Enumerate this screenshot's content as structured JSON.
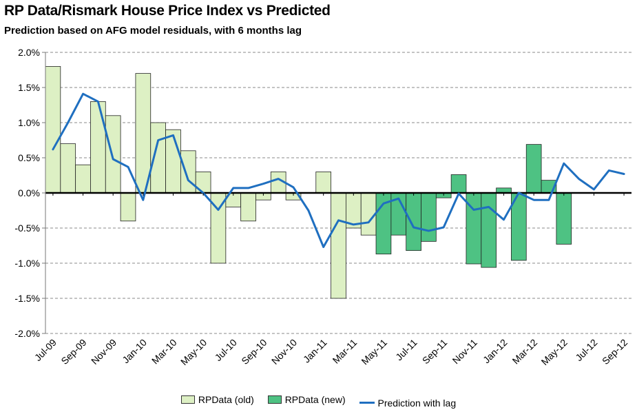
{
  "chart_data": {
    "type": "bar",
    "title": "RP Data/Rismark House Price Index vs Predicted",
    "subtitle": "Prediction based on AFG model residuals, with 6 months lag",
    "categories": [
      "Jul-09",
      "Aug-09",
      "Sep-09",
      "Oct-09",
      "Nov-09",
      "Dec-09",
      "Jan-10",
      "Feb-10",
      "Mar-10",
      "Apr-10",
      "May-10",
      "Jun-10",
      "Jul-10",
      "Aug-10",
      "Sep-10",
      "Oct-10",
      "Nov-10",
      "Dec-10",
      "Jan-11",
      "Feb-11",
      "Mar-11",
      "Apr-11",
      "May-11",
      "Jun-11",
      "Jul-11",
      "Aug-11",
      "Sep-11",
      "Oct-11",
      "Nov-11",
      "Dec-11",
      "Jan-12",
      "Feb-12",
      "Mar-12",
      "Apr-12",
      "May-12",
      "Jun-12",
      "Jul-12",
      "Aug-12",
      "Sep-12"
    ],
    "tick_labels": [
      "Jul-09",
      "Sep-09",
      "Nov-09",
      "Jan-10",
      "Mar-10",
      "May-10",
      "Jul-10",
      "Sep-10",
      "Nov-10",
      "Jan-11",
      "Mar-11",
      "May-11",
      "Jul-11",
      "Sep-11",
      "Nov-11",
      "Jan-12",
      "Mar-12",
      "May-12",
      "Jul-12",
      "Sep-12"
    ],
    "y_ticks": [
      2.0,
      1.5,
      1.0,
      0.5,
      0.0,
      -0.5,
      -1.0,
      -1.5,
      -2.0
    ],
    "y_tick_labels": [
      "2.0%",
      "1.5%",
      "1.0%",
      "0.5%",
      "0.0%",
      "-0.5%",
      "-1.0%",
      "-1.5%",
      "-2.0%"
    ],
    "ylim": [
      -2.0,
      2.0
    ],
    "series": [
      {
        "name": "RPData (old)",
        "kind": "bar",
        "color": "#ddf0c4",
        "values": [
          1.8,
          0.7,
          0.4,
          1.3,
          1.1,
          -0.4,
          1.7,
          1.0,
          0.9,
          0.6,
          0.3,
          -1.0,
          -0.2,
          -0.4,
          -0.1,
          0.3,
          -0.1,
          0.0,
          0.3,
          -1.5,
          -0.5,
          -0.6,
          null,
          null,
          null,
          null,
          null,
          null,
          null,
          null,
          null,
          null,
          null,
          null,
          null,
          null,
          null,
          null,
          null
        ]
      },
      {
        "name": "RPData (new)",
        "kind": "bar",
        "color": "#4ec283",
        "values": [
          null,
          null,
          null,
          null,
          null,
          null,
          null,
          null,
          null,
          null,
          null,
          null,
          null,
          null,
          null,
          null,
          null,
          null,
          null,
          null,
          null,
          null,
          -0.87,
          -0.6,
          -0.82,
          -0.69,
          -0.07,
          0.26,
          -1.01,
          -1.06,
          0.07,
          -0.96,
          0.69,
          0.18,
          -0.73,
          null,
          null,
          null,
          null
        ]
      },
      {
        "name": "Prediction with lag",
        "kind": "line",
        "color": "#1f6fc0",
        "values": [
          0.62,
          1.0,
          1.41,
          1.3,
          0.48,
          0.37,
          -0.1,
          0.75,
          0.82,
          0.18,
          0.0,
          -0.24,
          0.07,
          0.07,
          0.13,
          0.2,
          0.08,
          -0.25,
          -0.77,
          -0.39,
          -0.45,
          -0.42,
          -0.15,
          -0.08,
          -0.49,
          -0.54,
          -0.49,
          -0.01,
          -0.24,
          -0.2,
          -0.38,
          0.0,
          -0.1,
          -0.1,
          0.42,
          0.2,
          0.05,
          0.32,
          0.27
        ]
      }
    ],
    "legend": [
      "RPData (old)",
      "RPData (new)",
      "Prediction with lag"
    ],
    "legend_position": "bottom",
    "grid": true,
    "xlabel": "",
    "ylabel": ""
  }
}
